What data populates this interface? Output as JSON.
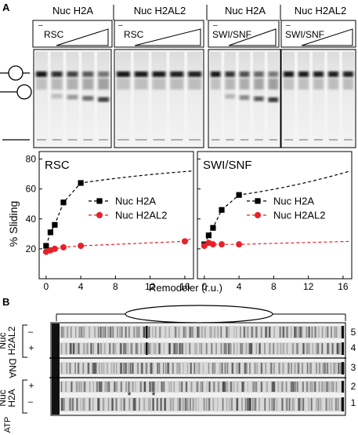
{
  "panel_a": {
    "label": "A",
    "headers": [
      "Nuc H2A",
      "Nuc H2AL2",
      "Nuc H2A",
      "Nuc H2AL2"
    ],
    "gel_labels": [
      "RSC",
      "RSC",
      "SWI/SNF",
      "SWI/SNF"
    ],
    "minus": "–",
    "gel_lanes": 5
  },
  "panel_b": {
    "label": "B",
    "row_groups": {
      "top": [
        "Nuc",
        "H2AL2"
      ],
      "middle": "DNA",
      "bottom": [
        "Nuc",
        "H2A"
      ]
    },
    "signs": [
      "–",
      "+",
      "+",
      "–"
    ],
    "atp_label": "ATP",
    "lane_numbers": [
      "5",
      "4",
      "3",
      "2",
      "1"
    ],
    "asterisk": "*"
  },
  "chart_data": [
    {
      "type": "scatter",
      "title": "RSC",
      "xlabel": "Remodeler (r.u.)",
      "ylabel": "% Sliding",
      "xticks": [
        "0",
        "4",
        "8",
        "12",
        "16"
      ],
      "yticks": [
        "20",
        "40",
        "60",
        "80"
      ],
      "xlim": [
        -0.8,
        17
      ],
      "ylim": [
        0,
        85
      ],
      "series": [
        {
          "name": "Nuc H2A",
          "color": "#000000",
          "marker": "square",
          "x": [
            0,
            0.5,
            1,
            2,
            4
          ],
          "y": [
            22,
            31,
            36,
            51,
            64
          ]
        },
        {
          "name": "Nuc H2AL2",
          "color": "#e8202a",
          "marker": "circle",
          "x": [
            0,
            0.5,
            1,
            2,
            4,
            16
          ],
          "y": [
            18,
            19,
            20,
            21,
            22,
            25
          ]
        }
      ]
    },
    {
      "type": "scatter",
      "title": "SWI/SNF",
      "xlabel": "Remodeler (r.u.)",
      "ylabel": "% Sliding",
      "xticks": [
        "0",
        "4",
        "8",
        "12",
        "16"
      ],
      "yticks": [
        "20",
        "40",
        "60",
        "80"
      ],
      "xlim": [
        -0.8,
        17
      ],
      "ylim": [
        0,
        85
      ],
      "series": [
        {
          "name": "Nuc H2A",
          "color": "#000000",
          "marker": "square",
          "x": [
            0,
            0.5,
            1,
            2,
            4
          ],
          "y": [
            23,
            29,
            34,
            46,
            56
          ]
        },
        {
          "name": "Nuc H2AL2",
          "color": "#e8202a",
          "marker": "circle",
          "x": [
            0,
            0.5,
            1,
            2,
            4
          ],
          "y": [
            22,
            24,
            23,
            23,
            23
          ]
        }
      ]
    }
  ]
}
